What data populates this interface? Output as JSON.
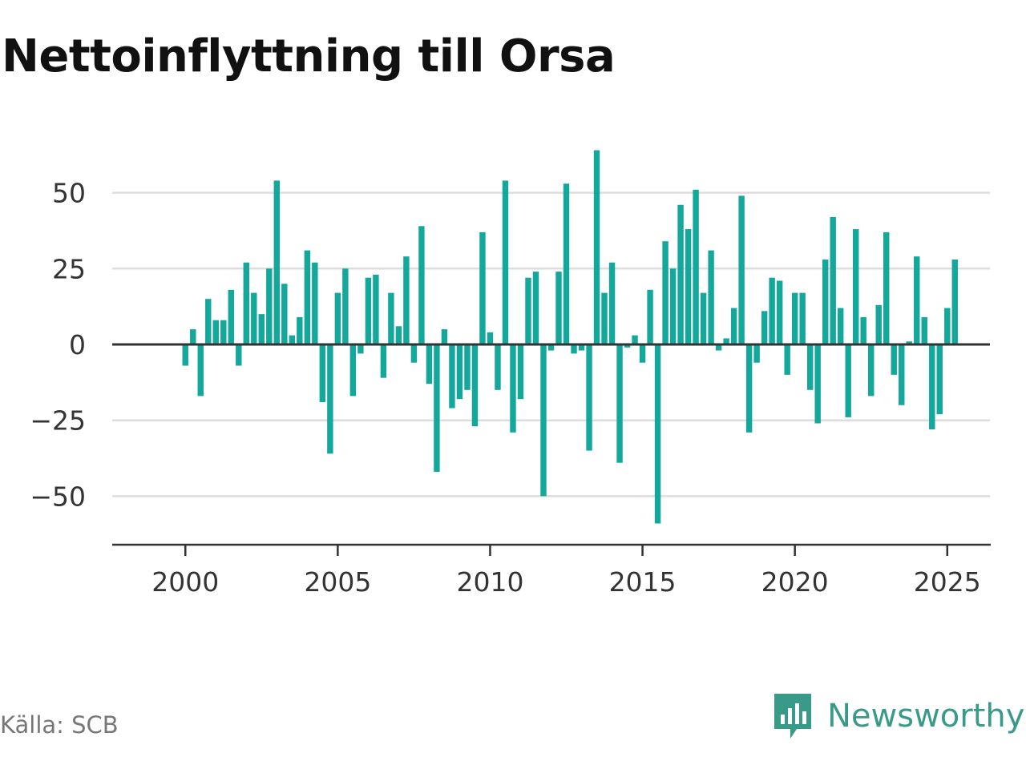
{
  "title": "Nettoinflyttning till Orsa",
  "source": "Källa: SCB",
  "brand": {
    "name": "Newsworthy",
    "icon": "newsworthy-logo-icon",
    "color": "#3a9a8a"
  },
  "colors": {
    "bar": "#14a89c",
    "grid": "#dddddd",
    "zero_line": "#333333",
    "axis_text": "#333333"
  },
  "chart_data": {
    "type": "bar",
    "title": "Nettoinflyttning till Orsa",
    "xlabel": "",
    "ylabel": "",
    "x_unit": "year (quarterly bars)",
    "ylim": [
      -66,
      66
    ],
    "xlim": [
      1997.6,
      2026.4
    ],
    "y_ticks": [
      50,
      25,
      0,
      -25,
      -50
    ],
    "y_tick_labels": [
      "50",
      "25",
      "0",
      "−25",
      "−50"
    ],
    "x_ticks": [
      2000,
      2005,
      2010,
      2015,
      2020,
      2025
    ],
    "x_tick_labels": [
      "2000",
      "2005",
      "2010",
      "2015",
      "2020",
      "2025"
    ],
    "grid": true,
    "legend": "none",
    "x": [
      2000.0,
      2000.25,
      2000.5,
      2000.75,
      2001.0,
      2001.25,
      2001.5,
      2001.75,
      2002.0,
      2002.25,
      2002.5,
      2002.75,
      2003.0,
      2003.25,
      2003.5,
      2003.75,
      2004.0,
      2004.25,
      2004.5,
      2004.75,
      2005.0,
      2005.25,
      2005.5,
      2005.75,
      2006.0,
      2006.25,
      2006.5,
      2006.75,
      2007.0,
      2007.25,
      2007.5,
      2007.75,
      2008.0,
      2008.25,
      2008.5,
      2008.75,
      2009.0,
      2009.25,
      2009.5,
      2009.75,
      2010.0,
      2010.25,
      2010.5,
      2010.75,
      2011.0,
      2011.25,
      2011.5,
      2011.75,
      2012.0,
      2012.25,
      2012.5,
      2012.75,
      2013.0,
      2013.25,
      2013.5,
      2013.75,
      2014.0,
      2014.25,
      2014.5,
      2014.75,
      2015.0,
      2015.25,
      2015.5,
      2015.75,
      2016.0,
      2016.25,
      2016.5,
      2016.75,
      2017.0,
      2017.25,
      2017.5,
      2017.75,
      2018.0,
      2018.25,
      2018.5,
      2018.75,
      2019.0,
      2019.25,
      2019.5,
      2019.75,
      2020.0,
      2020.25,
      2020.5,
      2020.75,
      2021.0,
      2021.25,
      2021.5,
      2021.75,
      2022.0,
      2022.25,
      2022.5,
      2022.75,
      2023.0,
      2023.25,
      2023.5,
      2023.75,
      2024.0,
      2024.25,
      2024.5,
      2024.75,
      2025.0,
      2025.25
    ],
    "values": [
      -7,
      5,
      -17,
      15,
      8,
      8,
      18,
      -7,
      27,
      17,
      10,
      25,
      54,
      20,
      3,
      9,
      31,
      27,
      -19,
      -36,
      17,
      25,
      -17,
      -3,
      22,
      23,
      -11,
      17,
      6,
      29,
      -6,
      39,
      -13,
      -42,
      5,
      -21,
      -18,
      -15,
      -27,
      37,
      4,
      -15,
      54,
      -29,
      -18,
      22,
      24,
      -50,
      -2,
      24,
      53,
      -3,
      -2,
      -35,
      64,
      17,
      27,
      -39,
      -1,
      3,
      -6,
      18,
      -59,
      34,
      25,
      46,
      38,
      51,
      17,
      31,
      -2,
      2,
      12,
      49,
      -29,
      -6,
      11,
      22,
      21,
      -10,
      17,
      17,
      -15,
      -26,
      28,
      42,
      12,
      -24,
      38,
      9,
      -17,
      13,
      37,
      -10,
      -20,
      1,
      29,
      9,
      -28,
      -23,
      12,
      28
    ]
  }
}
